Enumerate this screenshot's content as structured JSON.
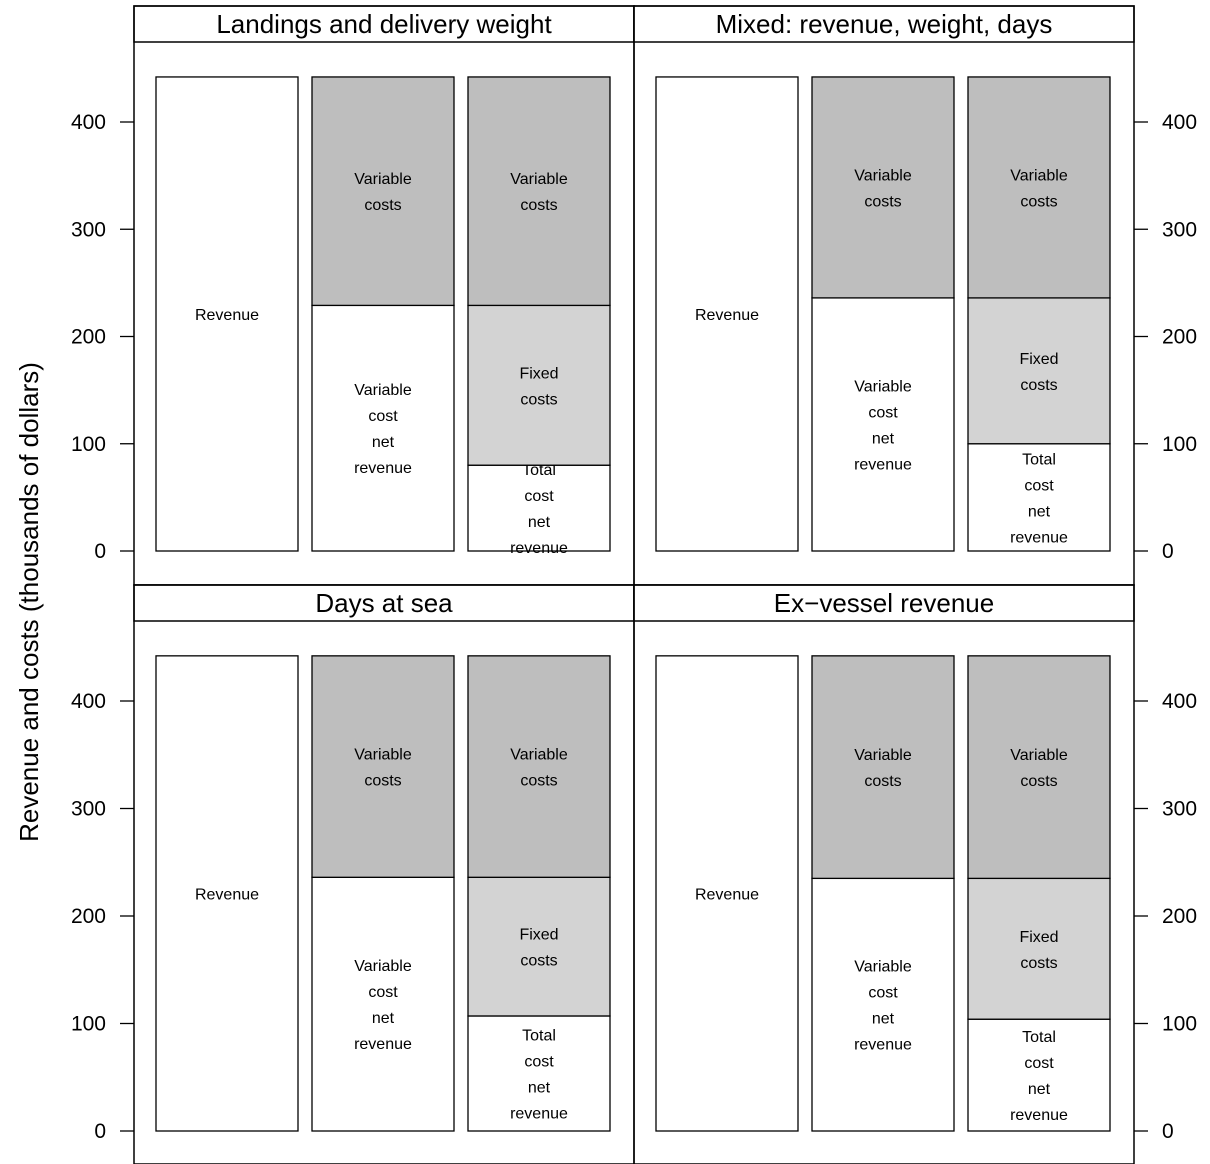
{
  "chart_data": {
    "type": "bar",
    "stacked": true,
    "ylabel": "Revenue and costs (thousands of dollars)",
    "ylim": [
      0,
      445
    ],
    "yticks": [
      0,
      100,
      200,
      300,
      400
    ],
    "colors": {
      "revenue": "#ffffff",
      "variable_costs": "#bebebe",
      "fixed_costs": "#d3d3d3",
      "net_revenue": "#ffffff"
    },
    "panels": [
      {
        "title": "Landings and delivery weight",
        "bars": [
          {
            "segments": [
              {
                "label": "Revenue",
                "value": 442,
                "color": "revenue"
              }
            ]
          },
          {
            "segments": [
              {
                "label": "Variable cost net revenue",
                "value": 229,
                "color": "net_revenue"
              },
              {
                "label": "Variable costs",
                "value": 213,
                "color": "variable_costs"
              }
            ]
          },
          {
            "segments": [
              {
                "label": "Total cost net revenue",
                "value": 80,
                "color": "net_revenue"
              },
              {
                "label": "Fixed costs",
                "value": 149,
                "color": "fixed_costs"
              },
              {
                "label": "Variable costs",
                "value": 213,
                "color": "variable_costs"
              }
            ]
          }
        ]
      },
      {
        "title": "Mixed: revenue, weight, days",
        "bars": [
          {
            "segments": [
              {
                "label": "Revenue",
                "value": 442,
                "color": "revenue"
              }
            ]
          },
          {
            "segments": [
              {
                "label": "Variable cost net revenue",
                "value": 236,
                "color": "net_revenue"
              },
              {
                "label": "Variable costs",
                "value": 206,
                "color": "variable_costs"
              }
            ]
          },
          {
            "segments": [
              {
                "label": "Total cost net revenue",
                "value": 100,
                "color": "net_revenue"
              },
              {
                "label": "Fixed costs",
                "value": 136,
                "color": "fixed_costs"
              },
              {
                "label": "Variable costs",
                "value": 206,
                "color": "variable_costs"
              }
            ]
          }
        ]
      },
      {
        "title": "Days at sea",
        "bars": [
          {
            "segments": [
              {
                "label": "Revenue",
                "value": 442,
                "color": "revenue"
              }
            ]
          },
          {
            "segments": [
              {
                "label": "Variable cost net revenue",
                "value": 236,
                "color": "net_revenue"
              },
              {
                "label": "Variable costs",
                "value": 206,
                "color": "variable_costs"
              }
            ]
          },
          {
            "segments": [
              {
                "label": "Total cost net revenue",
                "value": 107,
                "color": "net_revenue"
              },
              {
                "label": "Fixed costs",
                "value": 129,
                "color": "fixed_costs"
              },
              {
                "label": "Variable costs",
                "value": 206,
                "color": "variable_costs"
              }
            ]
          }
        ]
      },
      {
        "title": "Ex−vessel revenue",
        "bars": [
          {
            "segments": [
              {
                "label": "Revenue",
                "value": 442,
                "color": "revenue"
              }
            ]
          },
          {
            "segments": [
              {
                "label": "Variable cost net revenue",
                "value": 235,
                "color": "net_revenue"
              },
              {
                "label": "Variable costs",
                "value": 207,
                "color": "variable_costs"
              }
            ]
          },
          {
            "segments": [
              {
                "label": "Total cost net revenue",
                "value": 104,
                "color": "net_revenue"
              },
              {
                "label": "Fixed costs",
                "value": 131,
                "color": "fixed_costs"
              },
              {
                "label": "Variable costs",
                "value": 207,
                "color": "variable_costs"
              }
            ]
          }
        ]
      }
    ]
  }
}
